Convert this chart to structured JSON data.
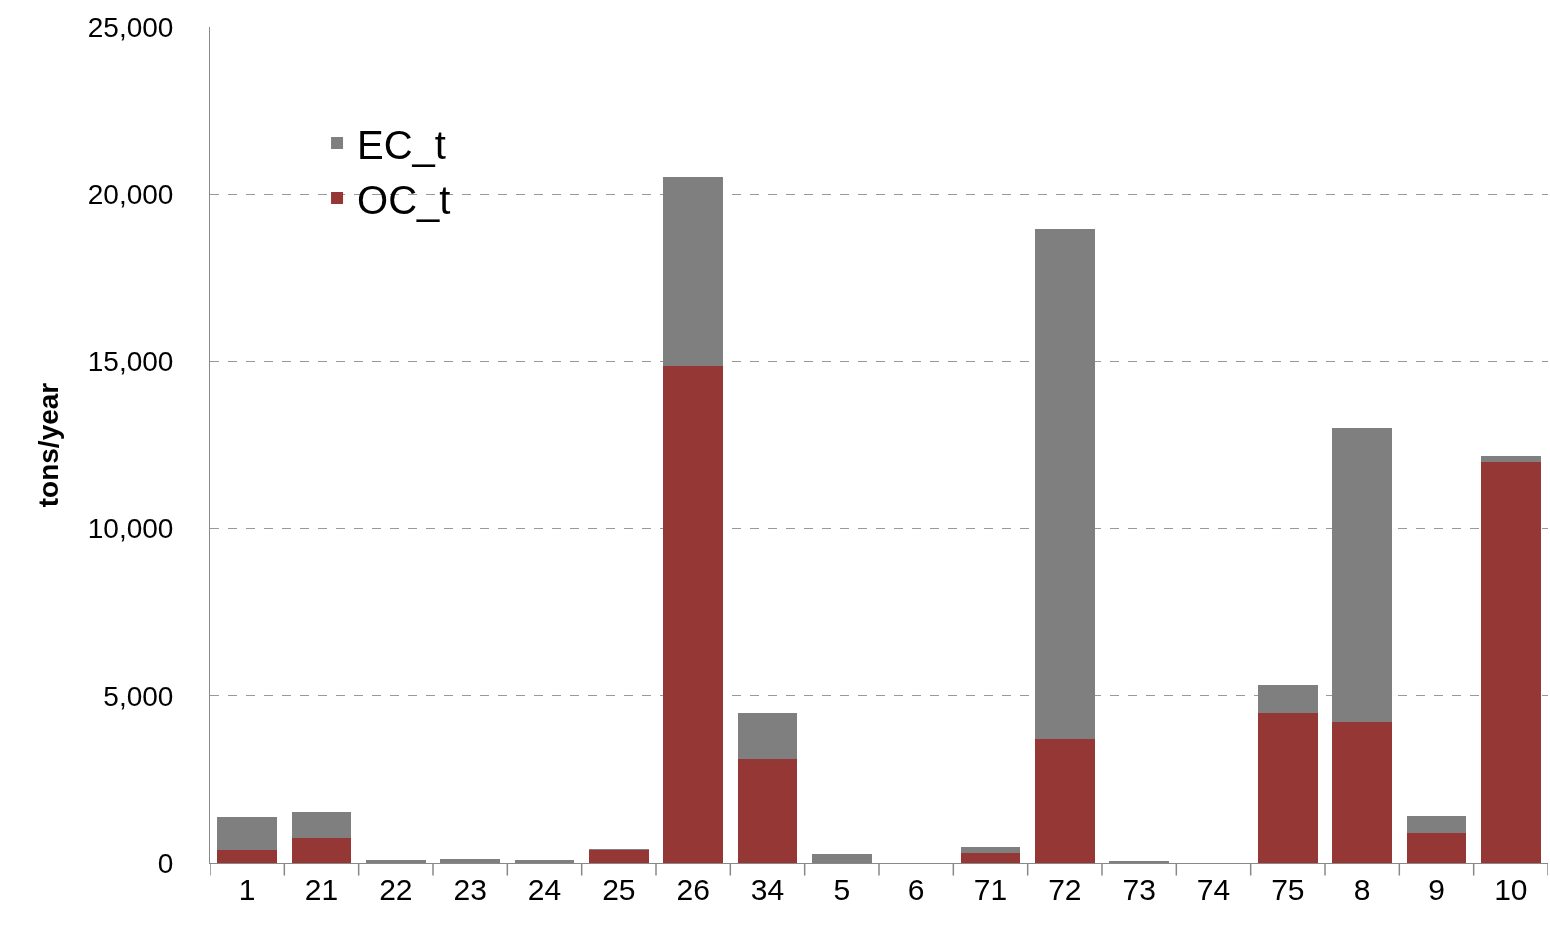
{
  "chart_data": {
    "type": "bar",
    "stacked": true,
    "ylabel": "tons/year",
    "categories": [
      "1",
      "21",
      "22",
      "23",
      "24",
      "25",
      "26",
      "34",
      "5",
      "6",
      "71",
      "72",
      "73",
      "74",
      "75",
      "8",
      "9",
      "10"
    ],
    "series": [
      {
        "name": "OC_t",
        "color": "#953735",
        "values": [
          390,
          750,
          0,
          0,
          0,
          390,
          14850,
          3110,
          0,
          0,
          300,
          3710,
          0,
          0,
          4490,
          4220,
          900,
          11980
        ]
      },
      {
        "name": "EC_t",
        "color": "#7f7f7f",
        "values": [
          990,
          780,
          80,
          130,
          90,
          20,
          5660,
          1380,
          270,
          0,
          180,
          15240,
          50,
          0,
          840,
          8800,
          510,
          180
        ]
      }
    ],
    "ylim": [
      0,
      25000
    ],
    "yticks": [
      0,
      {
        "value": 5000,
        "label": "5,000"
      },
      {
        "value": 10000,
        "label": "10,000"
      },
      {
        "value": 15000,
        "label": "15,000"
      },
      {
        "value": 20000,
        "label": "20,000"
      },
      {
        "value": 25000,
        "label": "25,000"
      }
    ],
    "grid": "y",
    "legend": "top left"
  }
}
